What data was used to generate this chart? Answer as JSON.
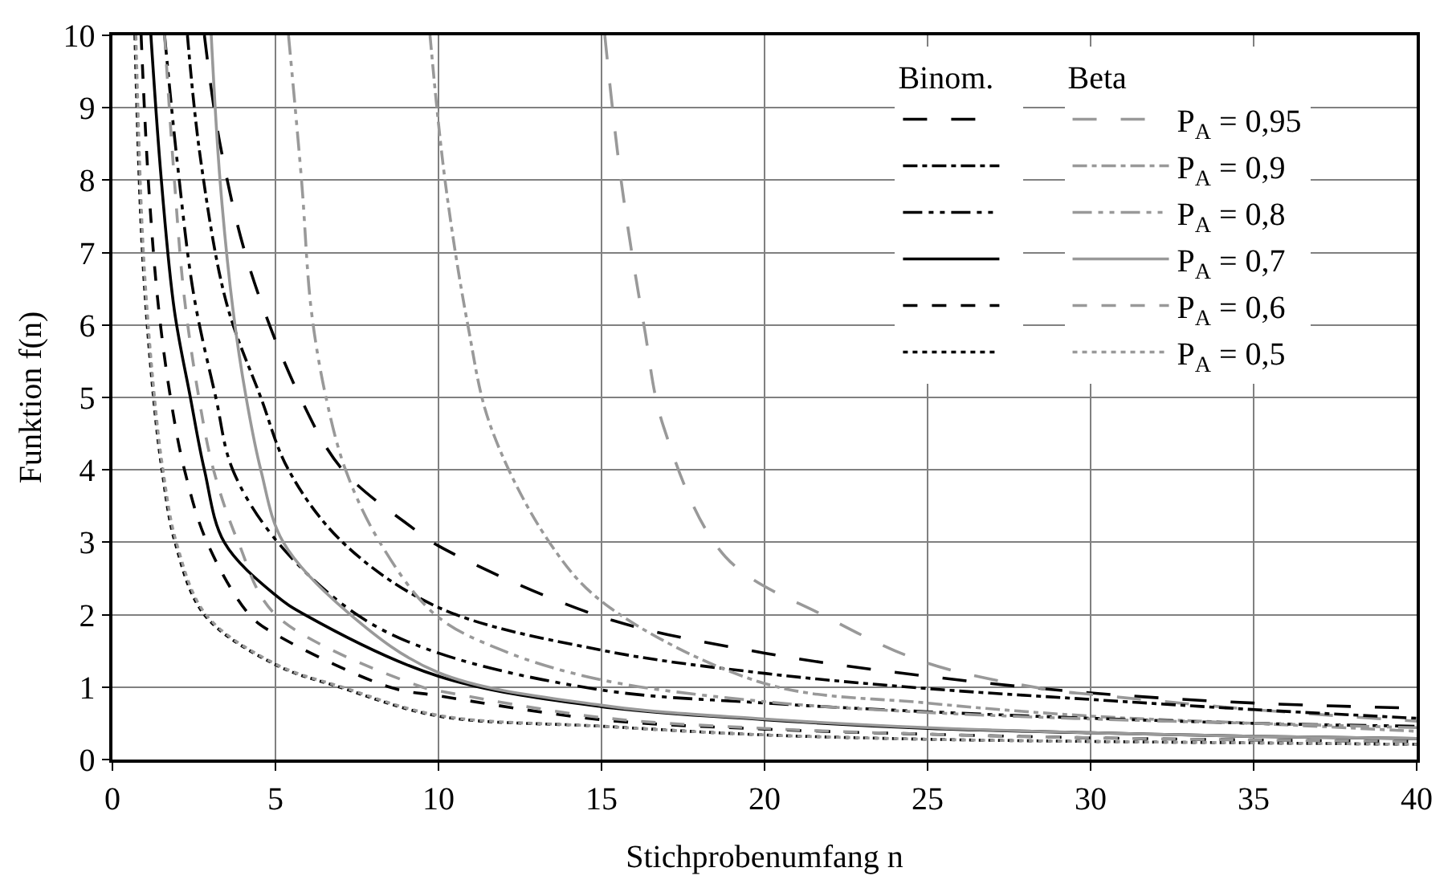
{
  "chart_data": {
    "type": "line",
    "xlabel": "Stichprobenumfang n",
    "ylabel": "Funktion f(n)",
    "legend_title": [
      "Binom.",
      "Beta"
    ],
    "xlim": [
      0,
      40
    ],
    "xticks": [
      0,
      5,
      10,
      15,
      20,
      25,
      30,
      35,
      40
    ],
    "ylim": [
      0,
      10
    ],
    "yticks": [
      0,
      1,
      2,
      3,
      4,
      5,
      6,
      7,
      8,
      9,
      10
    ],
    "grid": true,
    "legend": "top right",
    "marker": "none",
    "series": [
      {
        "color": "#000000",
        "line_style": "longdash",
        "x": [
          2.82,
          3.3,
          4.2,
          5.76,
          7.06,
          9.2,
          10,
          15,
          20,
          25,
          30,
          35,
          40
        ],
        "values": [
          10,
          8.5,
          6.8,
          5,
          4,
          3.2,
          2.95,
          1.97,
          1.47,
          1.15,
          0.92,
          0.78,
          0.71
        ]
      },
      {
        "name": "P$_{A}$ = 0,95",
        "color": "#999999",
        "line_style": "longdash",
        "x": [
          15.1,
          15.6,
          16.3,
          16.9,
          18.8,
          21.9,
          25,
          28.8,
          30,
          35,
          40
        ],
        "values": [
          10,
          8,
          6,
          4.6,
          2.8,
          1.97,
          1.33,
          0.96,
          0.9,
          0.69,
          0.53
        ]
      },
      {
        "color": "#000000",
        "line_style": "dashdot",
        "x": [
          2.3,
          2.7,
          3.5,
          4.55,
          5.4,
          7.06,
          10,
          15,
          20,
          25,
          30,
          35,
          40
        ],
        "values": [
          10,
          8.3,
          6.3,
          5,
          4,
          3,
          2.1,
          1.51,
          1.19,
          0.98,
          0.83,
          0.69,
          0.57
        ]
      },
      {
        "name": "P$_{A}$ = 0,9",
        "color": "#999999",
        "line_style": "dashdot",
        "x": [
          9.74,
          10.2,
          10.9,
          11.6,
          13.4,
          15.1,
          20,
          25,
          30,
          35,
          40
        ],
        "values": [
          10,
          8,
          6,
          4.6,
          3,
          2.15,
          1.05,
          0.78,
          0.6,
          0.5,
          0.39
        ]
      },
      {
        "color": "#000000",
        "line_style": "dashdotdot",
        "x": [
          1.6,
          2,
          2.5,
          3.17,
          3.69,
          5.07,
          7.5,
          10,
          15,
          20,
          25,
          30,
          35,
          40
        ],
        "values": [
          10,
          8.2,
          6.4,
          5,
          4,
          3,
          2,
          1.47,
          0.96,
          0.78,
          0.66,
          0.57,
          0.5,
          0.46
        ]
      },
      {
        "name": "P$_{A}$ = 0,8",
        "color": "#999999",
        "line_style": "dashdotdot",
        "x": [
          5.4,
          5.8,
          6.1,
          6.55,
          7.15,
          8.2,
          9.9,
          12,
          15,
          20,
          25,
          30,
          35,
          40
        ],
        "values": [
          10,
          8,
          6.2,
          5,
          4,
          3,
          2,
          1.5,
          1.1,
          0.8,
          0.65,
          0.56,
          0.5,
          0.44
        ]
      },
      {
        "color": "#000000",
        "line_style": "solid",
        "x": [
          1.18,
          1.5,
          1.9,
          2.39,
          2.82,
          3.43,
          5,
          5.9,
          10,
          15,
          20,
          25,
          30,
          35,
          40
        ],
        "values": [
          10,
          8,
          6.2,
          5,
          4,
          3,
          2.27,
          2,
          1.15,
          0.73,
          0.55,
          0.43,
          0.37,
          0.32,
          0.29
        ]
      },
      {
        "name": "P$_{A}$ = 0,7",
        "color": "#999999",
        "line_style": "solid",
        "x": [
          3.03,
          3.3,
          3.7,
          4.1,
          4.55,
          5.24,
          7.3,
          10,
          15,
          20,
          25,
          30,
          35,
          40
        ],
        "values": [
          10,
          8,
          6.2,
          5,
          4,
          3,
          2,
          1.2,
          0.75,
          0.56,
          0.44,
          0.37,
          0.32,
          0.29
        ]
      },
      {
        "color": "#000000",
        "line_style": "dash",
        "x": [
          0.88,
          1.1,
          1.4,
          1.78,
          2.21,
          2.9,
          4.2,
          5,
          8.5,
          10,
          15,
          20,
          25,
          30,
          35,
          40
        ],
        "values": [
          10,
          8,
          6.3,
          5,
          4,
          3,
          2,
          1.73,
          1,
          0.88,
          0.55,
          0.42,
          0.35,
          0.3,
          0.27,
          0.25
        ]
      },
      {
        "name": "P$_{A}$ = 0,6",
        "color": "#999999",
        "line_style": "dash",
        "x": [
          1.6,
          1.9,
          2.2,
          2.65,
          3.1,
          3.86,
          5,
          9.5,
          10,
          15,
          20,
          25,
          30,
          35,
          40
        ],
        "values": [
          10,
          8,
          6.4,
          5,
          4,
          3,
          2,
          1,
          0.95,
          0.58,
          0.43,
          0.35,
          0.3,
          0.27,
          0.25
        ]
      },
      {
        "color": "#000000",
        "line_style": "dot",
        "x": [
          0.69,
          0.92,
          1.26,
          1.52,
          1.92,
          2.82,
          5,
          6.97,
          10,
          15,
          20,
          25,
          30,
          35,
          40
        ],
        "values": [
          10,
          7,
          5,
          4,
          3,
          2,
          1.31,
          1,
          0.6,
          0.46,
          0.34,
          0.28,
          0.25,
          0.23,
          0.21
        ]
      },
      {
        "name": "P$_{A}$ = 0,5",
        "color": "#999999",
        "line_style": "dot",
        "x": [
          0.72,
          0.95,
          1.29,
          1.55,
          1.96,
          2.87,
          5,
          7.05,
          10,
          15,
          20,
          25,
          30,
          35,
          40
        ],
        "values": [
          10,
          7,
          5,
          4,
          3,
          2,
          1.32,
          1,
          0.61,
          0.46,
          0.34,
          0.28,
          0.25,
          0.23,
          0.21
        ]
      }
    ]
  }
}
